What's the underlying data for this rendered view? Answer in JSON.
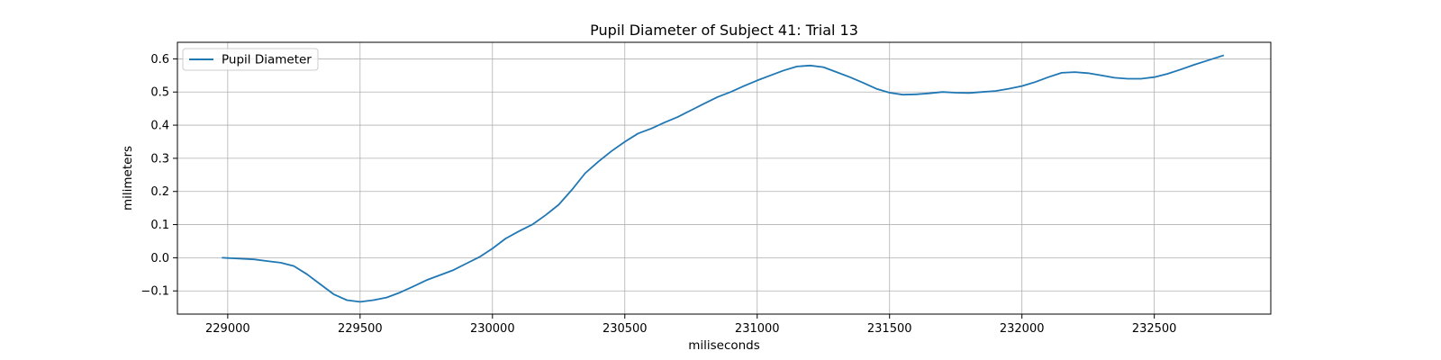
{
  "chart_data": {
    "type": "line",
    "title": "Pupil Diameter of Subject 41: Trial 13",
    "xlabel": "miliseconds",
    "ylabel": "milimeters",
    "xlim": [
      228810,
      232940
    ],
    "ylim": [
      -0.17,
      0.65
    ],
    "xticks": [
      229000,
      229500,
      230000,
      230500,
      231000,
      231500,
      232000,
      232500
    ],
    "yticks": [
      -0.1,
      0.0,
      0.1,
      0.2,
      0.3,
      0.4,
      0.5,
      0.6
    ],
    "ytick_labels": [
      "−0.1",
      "0.0",
      "0.1",
      "0.2",
      "0.3",
      "0.4",
      "0.5",
      "0.6"
    ],
    "grid": true,
    "legend_position": "top-left",
    "series": [
      {
        "name": "Pupil Diameter",
        "color": "#1f77b4",
        "x": [
          228980,
          229100,
          229150,
          229200,
          229250,
          229300,
          229350,
          229400,
          229450,
          229500,
          229550,
          229600,
          229650,
          229700,
          229750,
          229800,
          229850,
          229900,
          229950,
          230000,
          230050,
          230100,
          230150,
          230200,
          230250,
          230300,
          230350,
          230400,
          230450,
          230500,
          230550,
          230600,
          230650,
          230700,
          230750,
          230800,
          230850,
          230900,
          230950,
          231000,
          231050,
          231100,
          231150,
          231200,
          231250,
          231300,
          231350,
          231400,
          231450,
          231500,
          231550,
          231600,
          231650,
          231700,
          231750,
          231800,
          231850,
          231900,
          231950,
          232000,
          232050,
          232100,
          232150,
          232200,
          232250,
          232300,
          232350,
          232400,
          232450,
          232500,
          232550,
          232600,
          232650,
          232700,
          232760
        ],
        "values": [
          0.0,
          -0.005,
          -0.01,
          -0.015,
          -0.025,
          -0.05,
          -0.08,
          -0.11,
          -0.128,
          -0.133,
          -0.128,
          -0.12,
          -0.105,
          -0.087,
          -0.068,
          -0.053,
          -0.038,
          -0.018,
          0.002,
          0.028,
          0.058,
          0.08,
          0.1,
          0.128,
          0.16,
          0.205,
          0.255,
          0.29,
          0.322,
          0.35,
          0.375,
          0.39,
          0.408,
          0.425,
          0.445,
          0.465,
          0.485,
          0.5,
          0.518,
          0.535,
          0.55,
          0.565,
          0.577,
          0.58,
          0.575,
          0.56,
          0.545,
          0.528,
          0.51,
          0.498,
          0.492,
          0.493,
          0.496,
          0.5,
          0.498,
          0.497,
          0.5,
          0.503,
          0.51,
          0.518,
          0.53,
          0.545,
          0.558,
          0.56,
          0.557,
          0.55,
          0.543,
          0.54,
          0.54,
          0.545,
          0.555,
          0.568,
          0.582,
          0.595,
          0.61
        ]
      }
    ]
  }
}
